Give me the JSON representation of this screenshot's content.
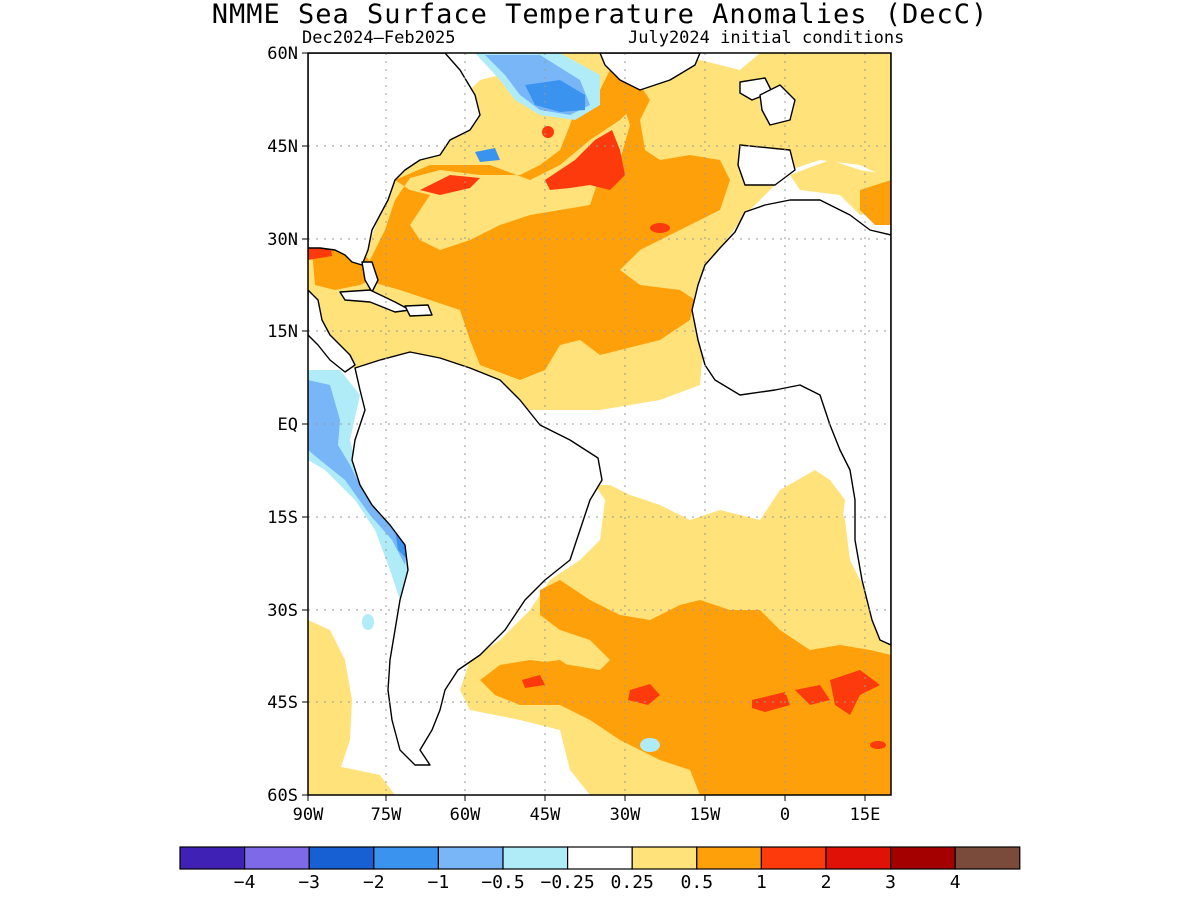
{
  "title": "NMME Sea Surface Temperature Anomalies (DecC)",
  "period": "Dec2024–Feb2025",
  "initial_conditions": "July2024 initial conditions",
  "map": {
    "projection": "lat-lon",
    "lon_range": [
      -90,
      15
    ],
    "lat_range": [
      -60,
      60
    ],
    "grid": "dotted",
    "lat_labels": [
      "60N",
      "45N",
      "30N",
      "15N",
      "EQ",
      "15S",
      "30S",
      "45S",
      "60S"
    ],
    "lon_labels": [
      "90W",
      "75W",
      "60W",
      "45W",
      "30W",
      "15W",
      "0",
      "15E"
    ]
  },
  "colorbar": {
    "colors": [
      "#3f22b5",
      "#7e6ae8",
      "#1660d3",
      "#3b93f0",
      "#78b6f7",
      "#b0ecf8",
      "#ffffff",
      "#ffe27a",
      "#fea00a",
      "#fd3a0c",
      "#e01207",
      "#a40000",
      "#7a4a3a"
    ],
    "labels": [
      "−4",
      "−3",
      "−2",
      "−1",
      "−0.5",
      "−0.25",
      "0.25",
      "0.5",
      "1",
      "2",
      "3",
      "4"
    ]
  }
}
